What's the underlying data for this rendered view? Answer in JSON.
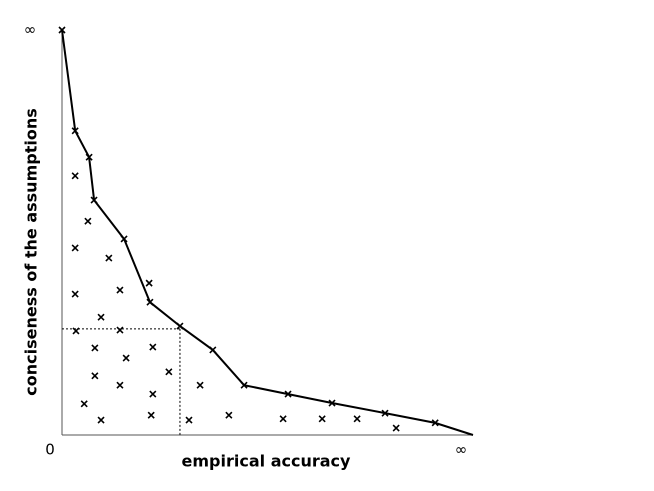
{
  "chart_data": {
    "type": "scatter",
    "xlabel": "empirical accuracy",
    "ylabel": "conciseness of the assumptions",
    "xlim": [
      0,
      1
    ],
    "ylim": [
      0,
      1
    ],
    "xticks": [
      0,
      {
        "value": 1,
        "label": "∞"
      }
    ],
    "yticks": [
      {
        "value": 1,
        "label": "∞"
      }
    ],
    "color": "#000000",
    "x": [
      0,
      0.032,
      0.066,
      0.078,
      0.151,
      0.214,
      0.287,
      0.367,
      0.443,
      0.55,
      0.657,
      0.786,
      0.908,
      0.032,
      0.063,
      0.032,
      0.114,
      0.032,
      0.141,
      0.212,
      0.095,
      0.034,
      0.141,
      0.08,
      0.221,
      0.156,
      0.08,
      0.26,
      0.141,
      0.336,
      0.054,
      0.221,
      0.095,
      0.217,
      0.309,
      0.406,
      0.538,
      0.633,
      0.718,
      0.813
    ],
    "y": [
      1,
      0.751,
      0.686,
      0.58,
      0.484,
      0.328,
      0.269,
      0.21,
      0.123,
      0.101,
      0.079,
      0.054,
      0.03,
      0.64,
      0.528,
      0.462,
      0.437,
      0.348,
      0.358,
      0.375,
      0.291,
      0.257,
      0.259,
      0.215,
      0.217,
      0.19,
      0.146,
      0.156,
      0.123,
      0.123,
      0.077,
      0.101,
      0.037,
      0.049,
      0.037,
      0.049,
      0.04,
      0.04,
      0.04,
      0.017
    ],
    "frontier": {
      "x": [
        0,
        0.032,
        0.066,
        0.078,
        0.151,
        0.214,
        0.287,
        0.367,
        0.443,
        0.55,
        0.657,
        0.786,
        0.908,
        1
      ],
      "y": [
        1,
        0.751,
        0.686,
        0.58,
        0.484,
        0.328,
        0.269,
        0.21,
        0.123,
        0.101,
        0.079,
        0.054,
        0.03,
        0
      ]
    },
    "guide": {
      "x": 0.287,
      "y": 0.262
    }
  }
}
